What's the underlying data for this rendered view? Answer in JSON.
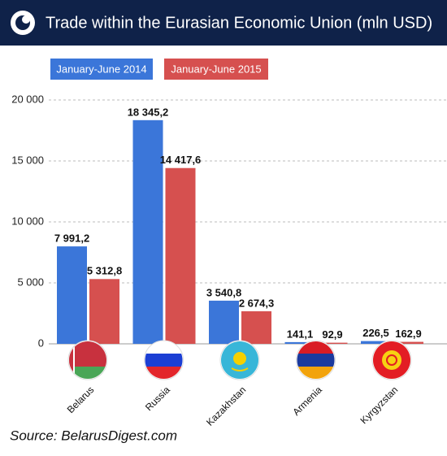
{
  "chart_data": {
    "type": "bar",
    "title": "Trade within the Eurasian Economic Union (mln USD)",
    "source": "Source: BelarusDigest.com",
    "categories": [
      "Belarus",
      "Russia",
      "Kazakhstan",
      "Armenia",
      "Kyrgyzstan"
    ],
    "series": [
      {
        "name": "January-June 2014",
        "color": "#3b76d9",
        "values": [
          7991.2,
          18345.2,
          3540.8,
          141.1,
          226.5
        ],
        "value_labels": [
          "7 991,2",
          "18 345,2",
          "3 540,8",
          "141,1",
          "226,5"
        ]
      },
      {
        "name": "January-June 2015",
        "color": "#d6504f",
        "values": [
          5312.8,
          14417.6,
          2674.3,
          92.9,
          162.9
        ],
        "value_labels": [
          "5 312,8",
          "14 417,6",
          "2 674,3",
          "92,9",
          "162,9"
        ]
      }
    ],
    "ylim": [
      0,
      20000
    ],
    "yticks": [
      0,
      {
        "value": 5000,
        "label": "5 000"
      },
      {
        "value": 10000,
        "label": "10 000"
      },
      {
        "value": 15000,
        "label": "15 000"
      },
      {
        "value": 20000,
        "label": "20 000"
      }
    ],
    "grid": true
  }
}
